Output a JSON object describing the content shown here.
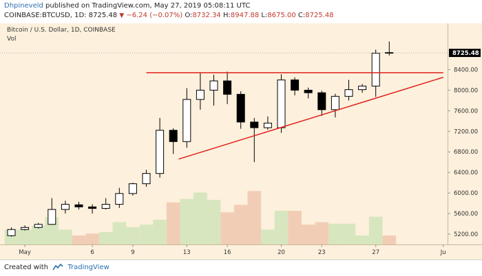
{
  "header": {
    "author": "Dhpineveld",
    "published_text": "published on TradingView.com, May 27, 2019 05:08:11 UTC",
    "symbol": "COINBASE:BTCUSD, 1D",
    "last": "8725.48",
    "change_arrow": "▼",
    "change": "−6.24 (−0.07%)",
    "open_label": "O:",
    "open": "8732.34",
    "high_label": "H:",
    "high": "8947.88",
    "low_label": "L:",
    "low": "8675.00",
    "close_label": "C:",
    "close": "8725.48"
  },
  "chart_data": {
    "type": "candlestick",
    "title": "Bitcoin / U.S. Dollar, 1D, COINBASE",
    "volume_label": "Vol",
    "ylim": [
      5000,
      9300
    ],
    "y_ticks": [
      5200,
      5600,
      6000,
      6400,
      6800,
      7200,
      7600,
      8000,
      8400
    ],
    "y_tick_labels": [
      "5200.00",
      "5600.00",
      "6000.00",
      "6400.00",
      "6800.00",
      "7200.00",
      "7600.00",
      "8000.00",
      "8400.00"
    ],
    "last_price": 8725.48,
    "last_price_label": "8725.48",
    "x_ticks": [
      {
        "index": 1,
        "label": "May"
      },
      {
        "index": 6,
        "label": "6"
      },
      {
        "index": 9,
        "label": "9"
      },
      {
        "index": 13,
        "label": "13"
      },
      {
        "index": 16,
        "label": "16"
      },
      {
        "index": 20,
        "label": "20"
      },
      {
        "index": 23,
        "label": "23"
      },
      {
        "index": 27,
        "label": "27"
      },
      {
        "index": 32,
        "label": "Ju"
      }
    ],
    "candles": [
      {
        "o": 5170,
        "h": 5330,
        "l": 5150,
        "c": 5290,
        "v": 0.3
      },
      {
        "o": 5290,
        "h": 5370,
        "l": 5270,
        "c": 5330,
        "v": 0.3
      },
      {
        "o": 5330,
        "h": 5420,
        "l": 5310,
        "c": 5390,
        "v": 0.38
      },
      {
        "o": 5390,
        "h": 5900,
        "l": 5380,
        "c": 5680,
        "v": 0.55
      },
      {
        "o": 5680,
        "h": 5850,
        "l": 5600,
        "c": 5780,
        "v": 0.3
      },
      {
        "o": 5770,
        "h": 5830,
        "l": 5680,
        "c": 5730,
        "v": 0.18
      },
      {
        "o": 5730,
        "h": 5780,
        "l": 5600,
        "c": 5700,
        "v": 0.22
      },
      {
        "o": 5700,
        "h": 5900,
        "l": 5680,
        "c": 5780,
        "v": 0.25
      },
      {
        "o": 5780,
        "h": 6100,
        "l": 5710,
        "c": 5990,
        "v": 0.45
      },
      {
        "o": 5990,
        "h": 6200,
        "l": 5950,
        "c": 6180,
        "v": 0.35
      },
      {
        "o": 6180,
        "h": 6450,
        "l": 6120,
        "c": 6380,
        "v": 0.4
      },
      {
        "o": 6380,
        "h": 7460,
        "l": 6300,
        "c": 7220,
        "v": 0.5
      },
      {
        "o": 7220,
        "h": 7260,
        "l": 6760,
        "c": 7000,
        "v": 0.85
      },
      {
        "o": 7000,
        "h": 8040,
        "l": 6880,
        "c": 7820,
        "v": 0.92
      },
      {
        "o": 7820,
        "h": 8340,
        "l": 7620,
        "c": 8000,
        "v": 1.05
      },
      {
        "o": 8000,
        "h": 8300,
        "l": 7700,
        "c": 8180,
        "v": 0.9
      },
      {
        "o": 8180,
        "h": 8360,
        "l": 7730,
        "c": 7920,
        "v": 0.65
      },
      {
        "o": 7920,
        "h": 7980,
        "l": 7250,
        "c": 7380,
        "v": 0.8
      },
      {
        "o": 7380,
        "h": 7460,
        "l": 6600,
        "c": 7270,
        "v": 1.08
      },
      {
        "o": 7270,
        "h": 7490,
        "l": 7230,
        "c": 7360,
        "v": 0.3
      },
      {
        "o": 7270,
        "h": 8310,
        "l": 7170,
        "c": 8200,
        "v": 0.68
      },
      {
        "o": 8200,
        "h": 8250,
        "l": 7900,
        "c": 8000,
        "v": 0.68
      },
      {
        "o": 8000,
        "h": 8050,
        "l": 7840,
        "c": 7950,
        "v": 0.4
      },
      {
        "o": 7950,
        "h": 7990,
        "l": 7500,
        "c": 7620,
        "v": 0.45
      },
      {
        "o": 7620,
        "h": 7930,
        "l": 7470,
        "c": 7880,
        "v": 0.42
      },
      {
        "o": 7880,
        "h": 8200,
        "l": 7800,
        "c": 8010,
        "v": 0.42
      },
      {
        "o": 8010,
        "h": 8120,
        "l": 7950,
        "c": 8080,
        "v": 0.18
      },
      {
        "o": 8080,
        "h": 8790,
        "l": 7870,
        "c": 8720,
        "v": 0.56
      },
      {
        "o": 8732,
        "h": 8948,
        "l": 8675,
        "c": 8725,
        "v": 0.18
      }
    ],
    "resistance_line": {
      "from_index": 10,
      "to_index": 32,
      "value": 8340
    },
    "support_line": {
      "from_index": 12.4,
      "from_value": 6660,
      "to_index": 32,
      "to_value": 8250
    }
  }
}
